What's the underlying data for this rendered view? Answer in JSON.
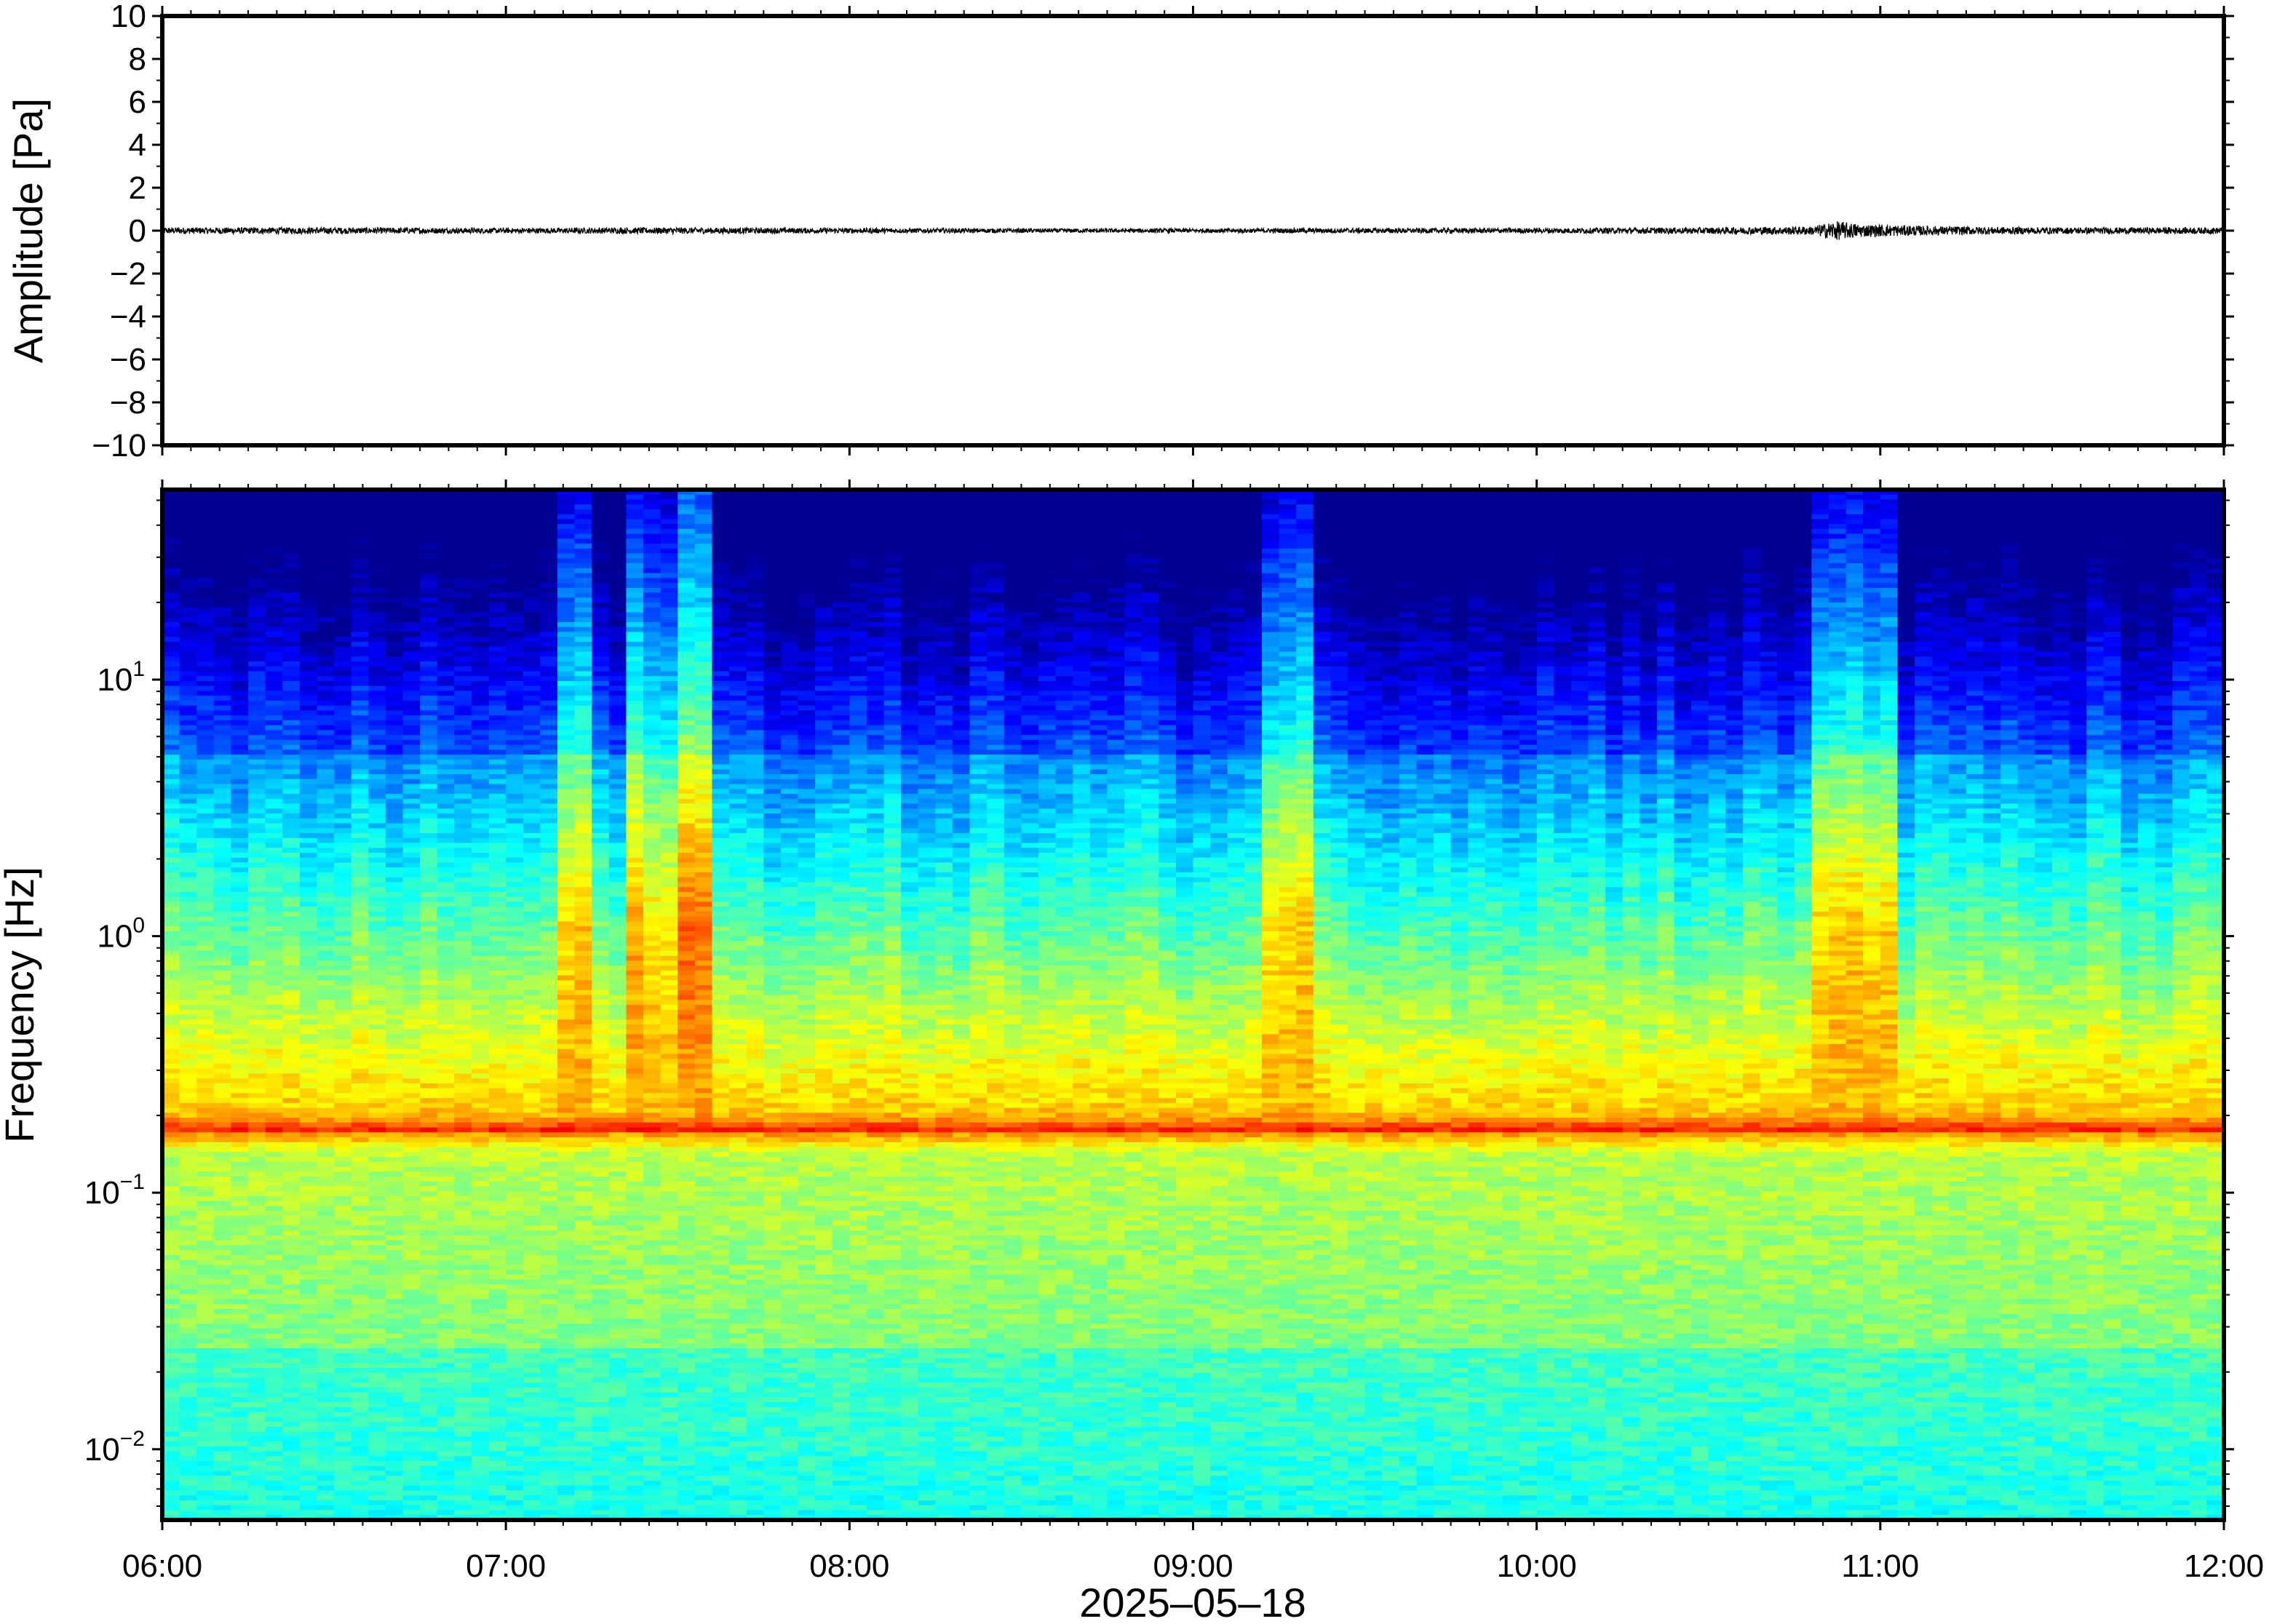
{
  "chart_data": [
    {
      "type": "line",
      "title": "",
      "ylabel": "Amplitude [Pa]",
      "xlabel": "",
      "ylim": [
        -10,
        10
      ],
      "yticks": [
        10,
        8,
        6,
        4,
        2,
        0,
        -2,
        -4,
        -6,
        -8,
        -10
      ],
      "ytick_labels": [
        "10",
        "8",
        "6",
        "4",
        "2",
        "0",
        "−2",
        "−4",
        "−6",
        "−8",
        "−10"
      ],
      "xlim": [
        "06:00",
        "12:00"
      ],
      "line_color": "#000000",
      "series": [
        {
          "x_hours": [
            6.0,
            6.5,
            7.0,
            7.5,
            8.0,
            8.5,
            9.0,
            9.5,
            10.0,
            10.5,
            10.8,
            10.87,
            10.95,
            11.2,
            11.5,
            12.0
          ],
          "envelope_pa": [
            0.15,
            0.15,
            0.12,
            0.15,
            0.12,
            0.1,
            0.1,
            0.12,
            0.12,
            0.15,
            0.2,
            0.45,
            0.3,
            0.2,
            0.15,
            0.15
          ]
        }
      ]
    },
    {
      "type": "heatmap",
      "title": "",
      "ylabel": "Frequency [Hz]",
      "xlabel": "2025–05–18",
      "yscale": "log",
      "ylim_hz": [
        0.0053,
        55
      ],
      "yticks_hz": [
        10,
        1,
        0.1,
        0.01
      ],
      "ytick_labels": [
        {
          "base": "10",
          "exp": "1"
        },
        {
          "base": "10",
          "exp": "0"
        },
        {
          "base": "10",
          "exp": "−1"
        },
        {
          "base": "10",
          "exp": "−2"
        }
      ],
      "xlim": [
        "06:00",
        "12:00"
      ],
      "xticks": [
        "06:00",
        "07:00",
        "08:00",
        "09:00",
        "10:00",
        "11:00",
        "12:00"
      ],
      "colormap": [
        "#00007f",
        "#0000ff",
        "#007fff",
        "#00ffff",
        "#7fff7f",
        "#ffff00",
        "#ff7f00",
        "#ff0000",
        "#7f0000"
      ],
      "microseism_peak_hz": 0.17,
      "broadband_events": [
        {
          "start": "07:10",
          "end": "07:16"
        },
        {
          "start": "07:22",
          "end": "07:36"
        },
        {
          "start": "09:12",
          "end": "09:22"
        },
        {
          "start": "10:48",
          "end": "11:02"
        }
      ]
    }
  ]
}
